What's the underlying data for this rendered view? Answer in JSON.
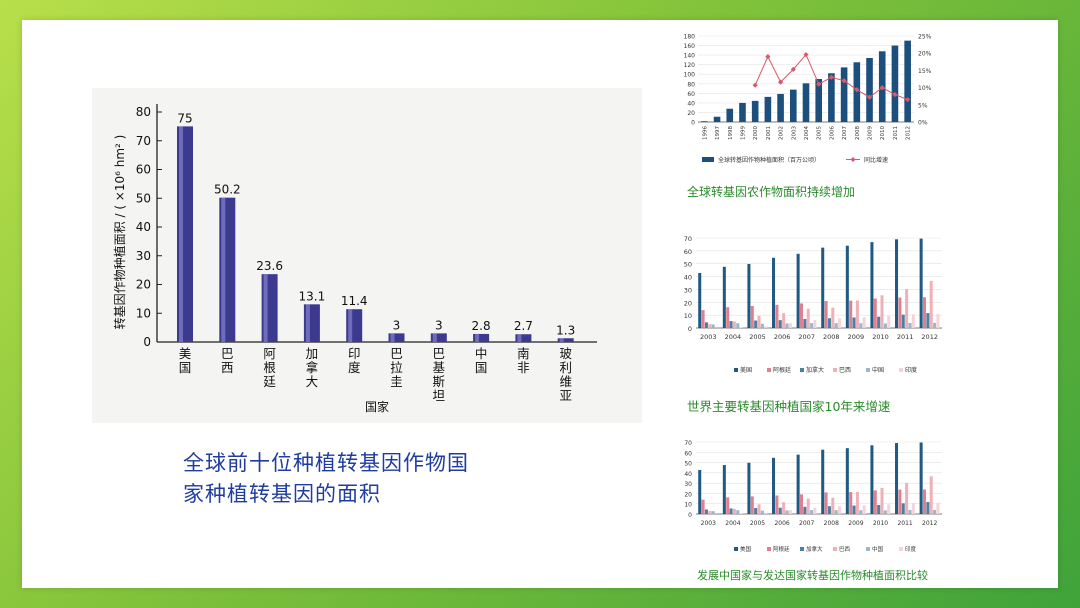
{
  "captions": {
    "main": "全球前十位种植转基因作物国家种植转基因的面积",
    "chart2": "全球转基因农作物面积持续增加",
    "chart3": "世界主要转基因种植国家10年来增速",
    "chart4": "发展中国家与发达国家转基因作物种植面积比较"
  },
  "chart_data": [
    {
      "type": "bar",
      "categories": [
        "美国",
        "巴西",
        "阿根廷",
        "加拿大",
        "印度",
        "巴拉圭",
        "巴基斯坦",
        "中国",
        "南非",
        "玻利维亚"
      ],
      "values": [
        75,
        50.2,
        23.6,
        13.1,
        11.4,
        3,
        3,
        2.8,
        2.7,
        1.3
      ],
      "value_labels": [
        "75",
        "50.2",
        "23.6",
        "13.1",
        "11.4",
        "3",
        "3",
        "2.8",
        "2.7",
        "1.3"
      ],
      "xlabel": "国家",
      "ylabel": "转基因作物种植面积 / ( ×10⁶ hm² )",
      "ylim": [
        0,
        80
      ],
      "yticks": [
        "0",
        "10",
        "20",
        "30",
        "40",
        "50",
        "60",
        "70",
        "80"
      ],
      "color": "#3c3a8e"
    },
    {
      "type": "bar+line",
      "categories": [
        "1996",
        "1997",
        "1998",
        "1999",
        "2000",
        "2001",
        "2002",
        "2003",
        "2004",
        "2005",
        "2006",
        "2007",
        "2008",
        "2009",
        "2010",
        "2011",
        "2012"
      ],
      "series": [
        {
          "name": "全球转基因作物种植面积（百万公顷）",
          "type": "bar",
          "values": [
            1.7,
            11,
            27.8,
            39.9,
            44.2,
            52.6,
            58.7,
            67.7,
            81,
            90,
            102,
            114.3,
            125,
            134,
            148,
            160,
            170.3
          ],
          "color": "#1c4f7c"
        },
        {
          "name": "同比增速",
          "type": "line",
          "axis": "right",
          "values": [
            null,
            null,
            null,
            null,
            10.7,
            19,
            11.6,
            15.3,
            19.6,
            11,
            13,
            12,
            9.4,
            7.2,
            10,
            8,
            6.5
          ],
          "color": "#d85a6a"
        }
      ],
      "ylim": [
        0,
        180
      ],
      "yticks": [
        "0",
        "20",
        "40",
        "60",
        "80",
        "100",
        "120",
        "140",
        "160",
        "180"
      ],
      "y2lim": [
        0,
        25
      ],
      "y2ticks": [
        "0%",
        "5%",
        "10%",
        "15%",
        "20%",
        "25%"
      ]
    },
    {
      "type": "bar",
      "categories": [
        "2003",
        "2004",
        "2005",
        "2006",
        "2007",
        "2008",
        "2009",
        "2010",
        "2011",
        "2012"
      ],
      "series": [
        {
          "name": "美国",
          "values": [
            42.8,
            47.6,
            49.8,
            54.6,
            57.7,
            62.5,
            64,
            66.8,
            69,
            69.5
          ],
          "color": "#1f5a84"
        },
        {
          "name": "阿根廷",
          "values": [
            13.9,
            16.2,
            17.1,
            18,
            19.1,
            21,
            21.3,
            22.9,
            23.7,
            23.9
          ],
          "color": "#e07f8e"
        },
        {
          "name": "加拿大",
          "values": [
            4.4,
            5.4,
            5.8,
            6.1,
            7,
            7.6,
            8.2,
            8.8,
            10.4,
            11.6
          ],
          "color": "#4d7fa3"
        },
        {
          "name": "巴西",
          "values": [
            3,
            5,
            9.4,
            11.5,
            15,
            15.8,
            21.4,
            25.4,
            30.3,
            36.6
          ],
          "color": "#f0b0b8"
        },
        {
          "name": "中国",
          "values": [
            2.8,
            3.7,
            3.3,
            3.5,
            3.8,
            3.8,
            3.7,
            3.5,
            3.9,
            4
          ],
          "color": "#9ab7cf"
        },
        {
          "name": "印度",
          "values": [
            0.1,
            0.5,
            1.3,
            3.8,
            6.2,
            7.6,
            8.4,
            9.4,
            10.6,
            10.8
          ],
          "color": "#f6d3d8"
        }
      ],
      "ylim": [
        0,
        70
      ],
      "yticks": [
        "0",
        "10",
        "20",
        "30",
        "40",
        "50",
        "60",
        "70"
      ]
    },
    {
      "type": "bar",
      "categories": [
        "2003",
        "2004",
        "2005",
        "2006",
        "2007",
        "2008",
        "2009",
        "2010",
        "2011",
        "2012"
      ],
      "series": [
        {
          "name": "美国",
          "values": [
            42.8,
            47.6,
            49.8,
            54.6,
            57.7,
            62.5,
            64,
            66.8,
            69,
            69.5
          ],
          "color": "#1f5a84"
        },
        {
          "name": "阿根廷",
          "values": [
            13.9,
            16.2,
            17.1,
            18,
            19.1,
            21,
            21.3,
            22.9,
            23.7,
            23.9
          ],
          "color": "#e07f8e"
        },
        {
          "name": "加拿大",
          "values": [
            4.4,
            5.4,
            5.8,
            6.1,
            7,
            7.6,
            8.2,
            8.8,
            10.4,
            11.6
          ],
          "color": "#4d7fa3"
        },
        {
          "name": "巴西",
          "values": [
            3,
            5,
            9.4,
            11.5,
            15,
            15.8,
            21.4,
            25.4,
            30.3,
            36.6
          ],
          "color": "#f0b0b8"
        },
        {
          "name": "中国",
          "values": [
            2.8,
            3.7,
            3.3,
            3.5,
            3.8,
            3.8,
            3.7,
            3.5,
            3.9,
            4
          ],
          "color": "#9ab7cf"
        },
        {
          "name": "印度",
          "values": [
            0.1,
            0.5,
            1.3,
            3.8,
            6.2,
            7.6,
            8.4,
            9.4,
            10.6,
            10.8
          ],
          "color": "#f6d3d8"
        }
      ],
      "ylim": [
        0,
        70
      ],
      "yticks": [
        "0",
        "10",
        "20",
        "30",
        "40",
        "50",
        "60",
        "70"
      ]
    }
  ]
}
